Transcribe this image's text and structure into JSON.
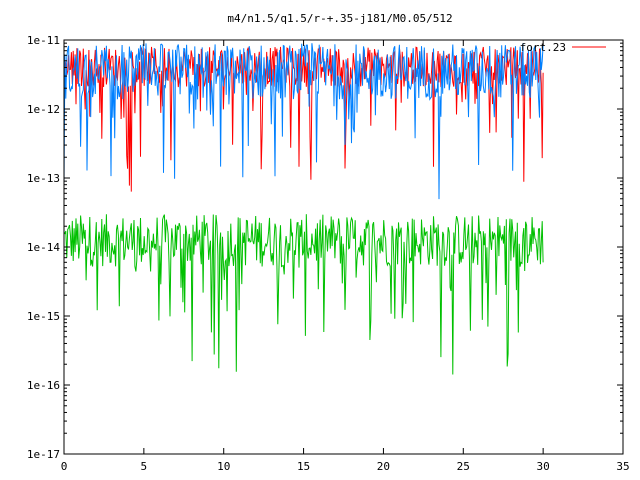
{
  "chart_data": {
    "type": "line",
    "title": "m4/n1.5/q1.5/r-+.35-j181/M0.05/512",
    "xlabel": "",
    "ylabel": "",
    "xlim": [
      0,
      35
    ],
    "ylim": [
      1e-17,
      1e-11
    ],
    "yscale": "log",
    "grid": false,
    "legend_position": "top-right",
    "x_ticks": [
      {
        "value": 0,
        "label": "0"
      },
      {
        "value": 5,
        "label": "5"
      },
      {
        "value": 10,
        "label": "10"
      },
      {
        "value": 15,
        "label": "15"
      },
      {
        "value": 20,
        "label": "20"
      },
      {
        "value": 25,
        "label": "25"
      },
      {
        "value": 30,
        "label": "30"
      },
      {
        "value": 35,
        "label": "35"
      }
    ],
    "y_ticks": [
      {
        "value": 1e-11,
        "label": "1e-11"
      },
      {
        "value": 1e-12,
        "label": "1e-12"
      },
      {
        "value": 1e-13,
        "label": "1e-13"
      },
      {
        "value": 1e-14,
        "label": "1e-14"
      },
      {
        "value": 1e-15,
        "label": "1e-15"
      },
      {
        "value": 1e-16,
        "label": "1e-16"
      },
      {
        "value": 1e-17,
        "label": "1e-17"
      }
    ],
    "series": [
      {
        "name": "fort.23",
        "color": "#ff0000",
        "x_range": [
          0,
          30
        ],
        "typical_range": [
          1e-12,
          8e-12
        ]
      },
      {
        "name": "",
        "color": "#0080ff",
        "x_range": [
          0,
          30
        ],
        "typical_range": [
          5e-13,
          9e-12
        ]
      },
      {
        "name": "",
        "color": "#00c000",
        "x_range": [
          0,
          30
        ],
        "typical_range": [
          2e-15,
          3e-14
        ]
      }
    ]
  }
}
